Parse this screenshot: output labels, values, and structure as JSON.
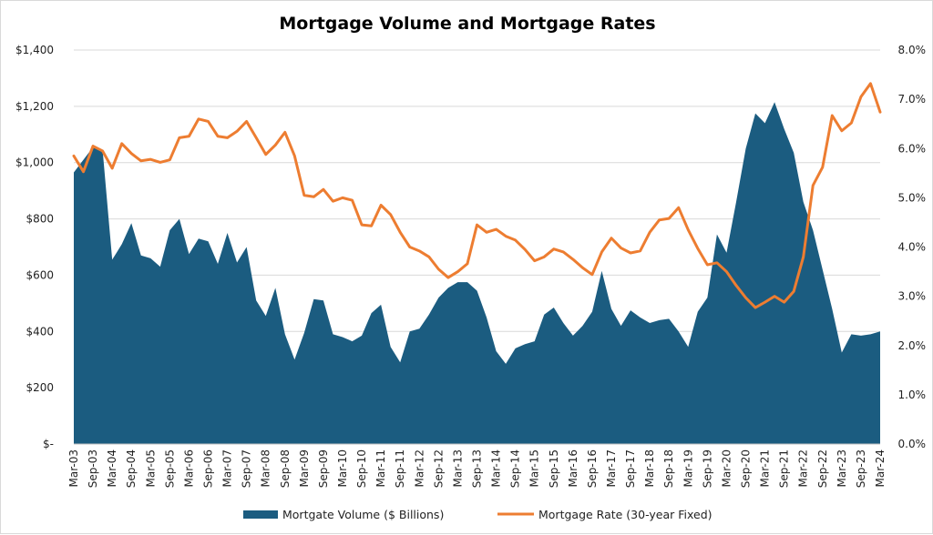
{
  "chart_data": {
    "type": "area+line",
    "title": "Mortgage Volume and Mortgage Rates",
    "x": [
      "Mar-03",
      "Jun-03",
      "Sep-03",
      "Dec-03",
      "Mar-04",
      "Jun-04",
      "Sep-04",
      "Dec-04",
      "Mar-05",
      "Jun-05",
      "Sep-05",
      "Dec-05",
      "Mar-06",
      "Jun-06",
      "Sep-06",
      "Dec-06",
      "Mar-07",
      "Jun-07",
      "Sep-07",
      "Dec-07",
      "Mar-08",
      "Jun-08",
      "Sep-08",
      "Dec-08",
      "Mar-09",
      "Jun-09",
      "Sep-09",
      "Dec-09",
      "Mar-10",
      "Jun-10",
      "Sep-10",
      "Dec-10",
      "Mar-11",
      "Jun-11",
      "Sep-11",
      "Dec-11",
      "Mar-12",
      "Jun-12",
      "Sep-12",
      "Dec-12",
      "Mar-13",
      "Jun-13",
      "Sep-13",
      "Dec-13",
      "Mar-14",
      "Jun-14",
      "Sep-14",
      "Dec-14",
      "Mar-15",
      "Jun-15",
      "Sep-15",
      "Dec-15",
      "Mar-16",
      "Jun-16",
      "Sep-16",
      "Dec-16",
      "Mar-17",
      "Jun-17",
      "Sep-17",
      "Dec-17",
      "Mar-18",
      "Jun-18",
      "Sep-18",
      "Dec-18",
      "Mar-19",
      "Jun-19",
      "Sep-19",
      "Dec-19",
      "Mar-20",
      "Jun-20",
      "Sep-20",
      "Dec-20",
      "Mar-21",
      "Jun-21",
      "Sep-21",
      "Dec-21",
      "Mar-22",
      "Jun-22",
      "Sep-22",
      "Dec-22",
      "Mar-23",
      "Jun-23",
      "Sep-23",
      "Dec-23",
      "Mar-24"
    ],
    "x_tick_labels": [
      "Mar-03",
      "Sep-03",
      "Mar-04",
      "Sep-04",
      "Mar-05",
      "Sep-05",
      "Mar-06",
      "Sep-06",
      "Mar-07",
      "Sep-07",
      "Mar-08",
      "Sep-08",
      "Mar-09",
      "Sep-09",
      "Mar-10",
      "Sep-10",
      "Mar-11",
      "Sep-11",
      "Mar-12",
      "Sep-12",
      "Mar-13",
      "Sep-13",
      "Mar-14",
      "Sep-14",
      "Mar-15",
      "Sep-15",
      "Mar-16",
      "Sep-16",
      "Mar-17",
      "Sep-17",
      "Mar-18",
      "Sep-18",
      "Mar-19",
      "Sep-19",
      "Mar-20",
      "Sep-20",
      "Mar-21",
      "Sep-21",
      "Mar-22",
      "Sep-22",
      "Mar-23",
      "Sep-23",
      "Mar-24"
    ],
    "series": [
      {
        "name": "Mortgate Volume ($ Billions)",
        "type": "area",
        "axis": "left",
        "color": "#1b5c80",
        "values": [
          965,
          1010,
          1055,
          1045,
          655,
          710,
          785,
          670,
          660,
          630,
          760,
          800,
          675,
          730,
          720,
          640,
          750,
          645,
          700,
          510,
          455,
          555,
          390,
          300,
          395,
          515,
          510,
          390,
          380,
          365,
          385,
          465,
          495,
          345,
          290,
          400,
          410,
          460,
          520,
          555,
          575,
          575,
          545,
          450,
          330,
          285,
          340,
          355,
          365,
          460,
          485,
          430,
          385,
          420,
          470,
          615,
          480,
          420,
          475,
          450,
          430,
          440,
          445,
          400,
          345,
          470,
          520,
          745,
          680,
          860,
          1050,
          1175,
          1140,
          1215,
          1120,
          1035,
          860,
          760,
          620,
          480,
          325,
          390,
          385,
          390,
          400
        ]
      },
      {
        "name": "Mortgage Rate (30-year Fixed)",
        "type": "line",
        "axis": "right",
        "color": "#ed7d31",
        "values": [
          5.85,
          5.53,
          6.05,
          5.95,
          5.6,
          6.1,
          5.9,
          5.75,
          5.78,
          5.72,
          5.77,
          6.22,
          6.25,
          6.6,
          6.55,
          6.25,
          6.22,
          6.35,
          6.55,
          6.22,
          5.88,
          6.07,
          6.33,
          5.85,
          5.05,
          5.02,
          5.17,
          4.93,
          5.0,
          4.95,
          4.45,
          4.43,
          4.85,
          4.66,
          4.3,
          4.0,
          3.92,
          3.8,
          3.55,
          3.38,
          3.5,
          3.66,
          4.45,
          4.3,
          4.36,
          4.22,
          4.14,
          3.95,
          3.72,
          3.8,
          3.96,
          3.9,
          3.75,
          3.58,
          3.44,
          3.9,
          4.18,
          3.98,
          3.88,
          3.92,
          4.3,
          4.55,
          4.58,
          4.8,
          4.35,
          3.97,
          3.64,
          3.68,
          3.5,
          3.22,
          2.97,
          2.77,
          2.88,
          3.0,
          2.88,
          3.1,
          3.8,
          5.25,
          5.62,
          6.67,
          6.36,
          6.52,
          7.05,
          7.32,
          6.74
        ]
      }
    ],
    "y_left": {
      "min": 0,
      "max": 1400,
      "step": 200,
      "tick_labels": [
        "$-",
        "$200",
        "$400",
        "$600",
        "$800",
        "$1,000",
        "$1,200",
        "$1,400"
      ]
    },
    "y_right": {
      "min": 0,
      "max": 8,
      "step": 1,
      "tick_labels": [
        "0.0%",
        "1.0%",
        "2.0%",
        "3.0%",
        "4.0%",
        "5.0%",
        "6.0%",
        "7.0%",
        "8.0%"
      ]
    },
    "grid": true,
    "legend_position": "bottom"
  }
}
